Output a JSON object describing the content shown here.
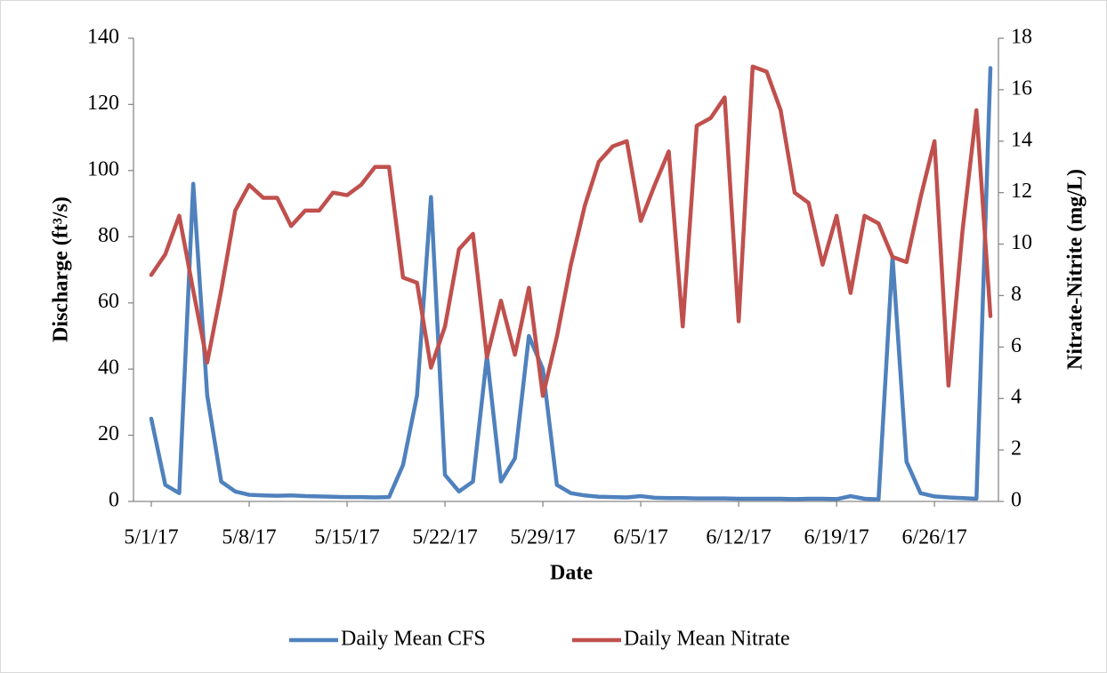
{
  "chart_data": {
    "type": "line",
    "x_label": "Date",
    "y_label": "Discharge (ft³/s)",
    "y2_label": "Nitrate-Nitrite (mg/L)",
    "categories": [
      "5/1/17",
      null,
      null,
      null,
      null,
      null,
      null,
      "5/8/17",
      null,
      null,
      null,
      null,
      null,
      null,
      "5/15/17",
      null,
      null,
      null,
      null,
      null,
      null,
      "5/22/17",
      null,
      null,
      null,
      null,
      null,
      null,
      "5/29/17",
      null,
      null,
      null,
      null,
      null,
      null,
      "6/5/17",
      null,
      null,
      null,
      null,
      null,
      null,
      "6/12/17",
      null,
      null,
      null,
      null,
      null,
      null,
      "6/19/17",
      null,
      null,
      null,
      null,
      null,
      null,
      "6/26/17",
      null,
      null,
      null,
      null
    ],
    "series": [
      {
        "name": "Daily Mean CFS",
        "color": "#4f81bd",
        "values": [
          25,
          5,
          2.5,
          96,
          32,
          6,
          3,
          2,
          1.8,
          1.7,
          1.8,
          1.6,
          1.5,
          1.4,
          1.3,
          1.3,
          1.2,
          1.3,
          11,
          32,
          92,
          8,
          3,
          6,
          44,
          6,
          13,
          50,
          40,
          5,
          2.5,
          1.8,
          1.4,
          1.3,
          1.2,
          1.6,
          1.1,
          1,
          1,
          0.9,
          0.9,
          0.9,
          0.8,
          0.8,
          0.8,
          0.8,
          0.7,
          0.8,
          0.8,
          0.7,
          1.6,
          0.8,
          0.6,
          74,
          12,
          2.5,
          1.5,
          1.2,
          1,
          0.8,
          131
        ]
      },
      {
        "name": "Daily Mean Nitrate",
        "color": "#c0504d",
        "axis": "y2",
        "values": [
          8.8,
          9.6,
          11.1,
          8.2,
          5.4,
          8.2,
          11.3,
          12.3,
          11.8,
          11.8,
          10.7,
          11.3,
          11.3,
          12.0,
          11.9,
          12.3,
          13.0,
          13.0,
          8.7,
          8.5,
          5.2,
          6.8,
          9.8,
          10.4,
          5.6,
          7.8,
          5.7,
          8.3,
          4.1,
          6.4,
          9.2,
          11.5,
          13.2,
          13.8,
          14.0,
          10.9,
          12.3,
          13.6,
          6.8,
          14.6,
          14.9,
          15.7,
          7.0,
          16.9,
          16.7,
          15.2,
          12.0,
          11.6,
          9.2,
          11.1,
          8.1,
          11.1,
          10.8,
          9.5,
          9.3,
          11.8,
          14.0,
          4.5,
          10.5,
          15.2,
          7.2
        ]
      }
    ],
    "ylim": [
      0,
      140
    ],
    "yticks": [
      0,
      20,
      40,
      60,
      80,
      100,
      120,
      140
    ],
    "y2lim": [
      0,
      18
    ],
    "y2ticks": [
      0,
      2,
      4,
      6,
      8,
      10,
      12,
      14,
      16,
      18
    ],
    "grid": false,
    "legend": "bottom"
  }
}
